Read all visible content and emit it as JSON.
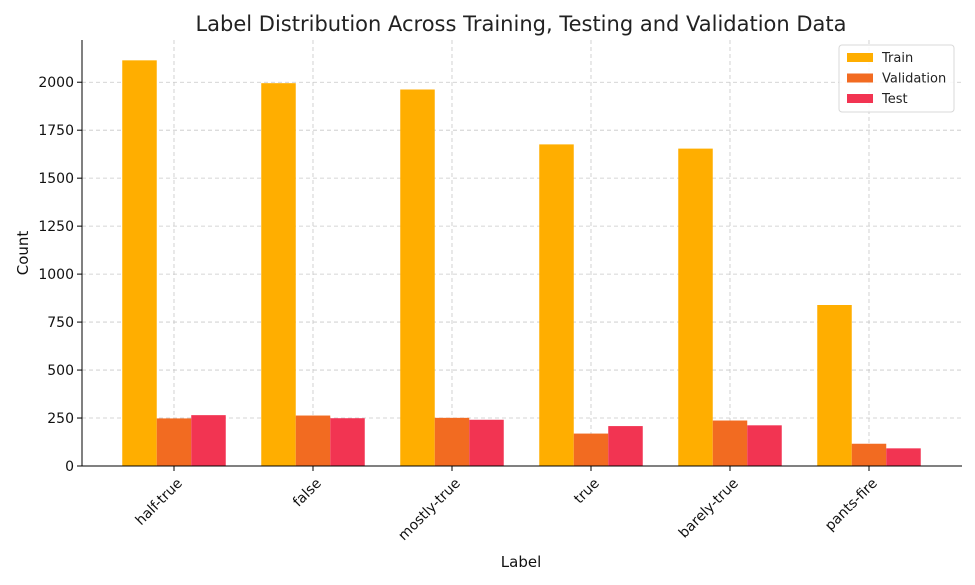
{
  "chart_data": {
    "type": "bar",
    "title": "Label Distribution Across Training, Testing and Validation Data",
    "xlabel": "Label",
    "ylabel": "Count",
    "categories": [
      "half-true",
      "false",
      "mostly-true",
      "true",
      "barely-true",
      "pants-fire"
    ],
    "series": [
      {
        "name": "Train",
        "color": "#FFAE00",
        "values": [
          2114,
          1995,
          1962,
          1676,
          1654,
          839
        ]
      },
      {
        "name": "Validation",
        "color": "#F26B21",
        "values": [
          248,
          263,
          251,
          169,
          237,
          116
        ]
      },
      {
        "name": "Test",
        "color": "#F23452",
        "values": [
          265,
          249,
          241,
          208,
          212,
          92
        ]
      }
    ],
    "ylim": [
      0,
      2220
    ],
    "yticks": [
      0,
      250,
      500,
      750,
      1000,
      1250,
      1500,
      1750,
      2000
    ],
    "grid": true,
    "legend_position": "top-right"
  }
}
